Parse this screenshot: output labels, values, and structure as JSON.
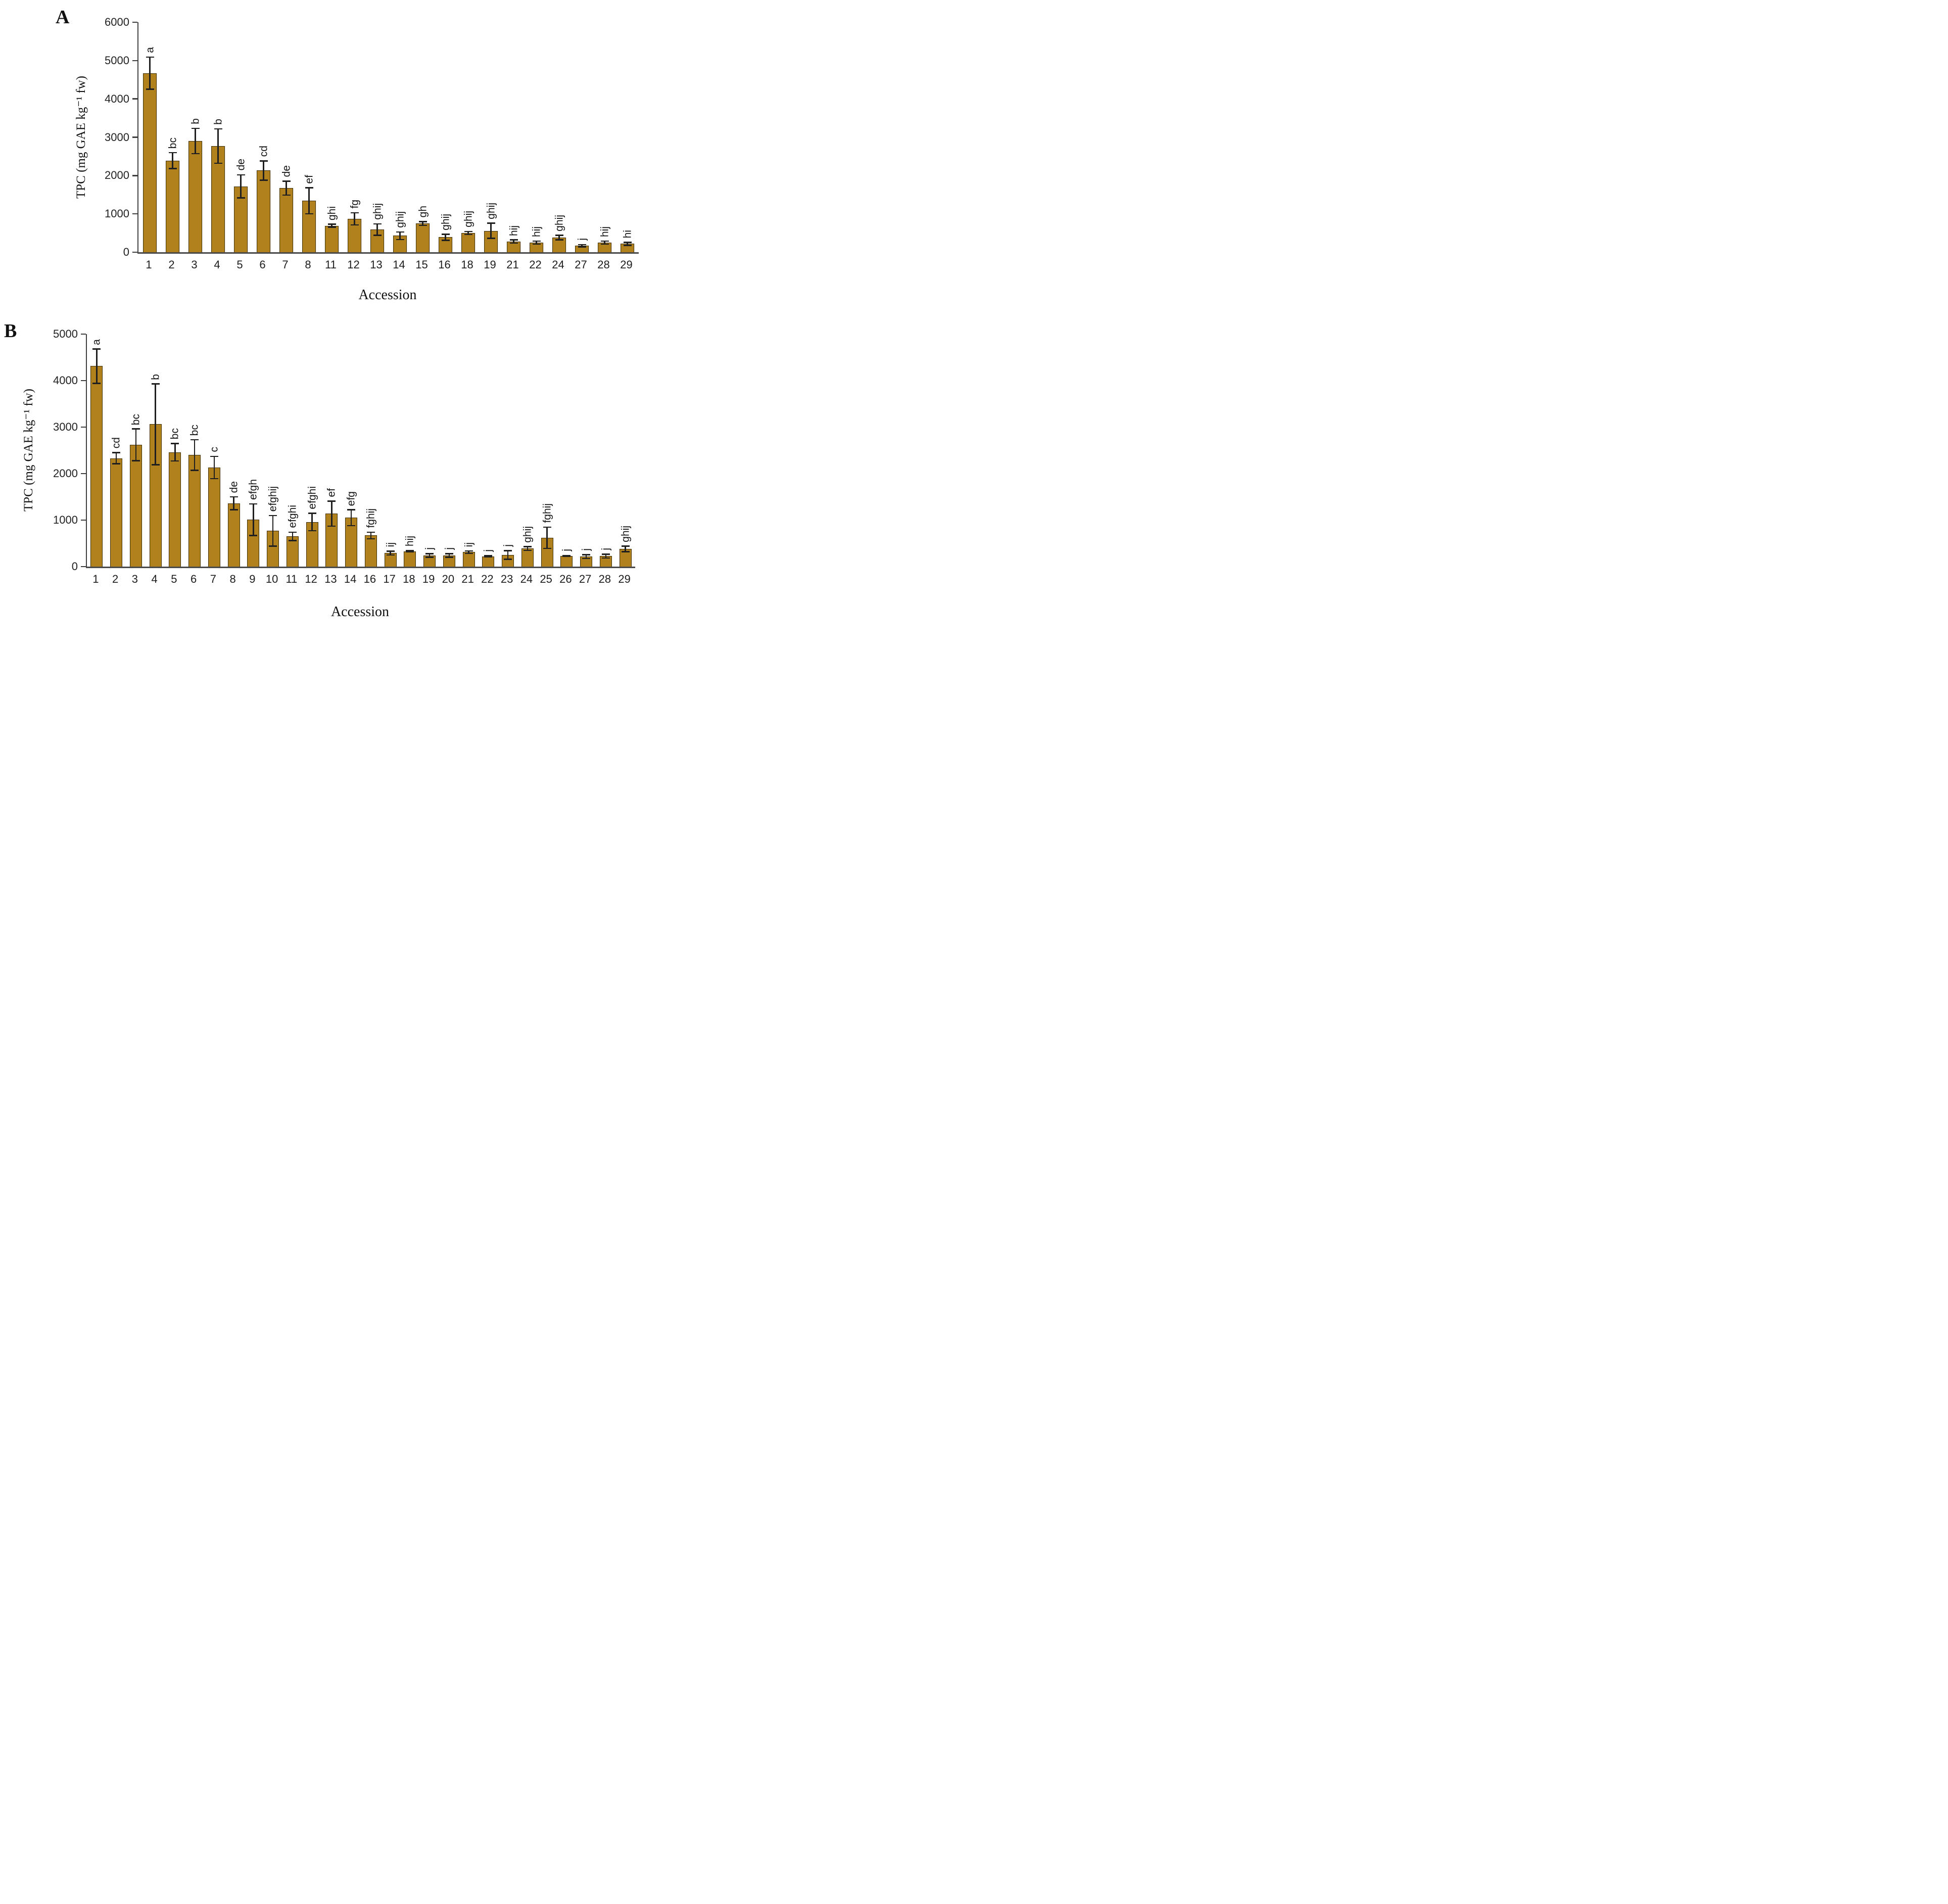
{
  "figure": {
    "bar_fill_color": "#b0811c",
    "bar_border_color": "#3e2d07",
    "error_bar_color": "#1f1f1f",
    "axis_color": "#3f3f3f"
  },
  "chart_data": [
    {
      "type": "bar",
      "panel": "A",
      "xlabel": "Accession",
      "ylabel": "TPC (mg GAE kg⁻¹ fw)",
      "ylim": [
        0,
        6000
      ],
      "yticks": [
        0,
        1000,
        2000,
        3000,
        4000,
        5000,
        6000
      ],
      "grid": false,
      "categories": [
        "1",
        "2",
        "3",
        "4",
        "5",
        "6",
        "7",
        "8",
        "11",
        "12",
        "13",
        "14",
        "15",
        "16",
        "18",
        "19",
        "21",
        "22",
        "24",
        "27",
        "28",
        "29"
      ],
      "values": [
        4670,
        2390,
        2900,
        2770,
        1720,
        2130,
        1670,
        1340,
        690,
        870,
        590,
        430,
        750,
        390,
        500,
        560,
        280,
        250,
        380,
        170,
        250,
        220
      ],
      "errors": [
        420,
        210,
        330,
        450,
        300,
        250,
        180,
        340,
        40,
        160,
        150,
        100,
        50,
        80,
        40,
        200,
        40,
        40,
        60,
        30,
        40,
        40
      ],
      "sig_letters": [
        "a",
        "bc",
        "b",
        "b",
        "de",
        "cd",
        "de",
        "ef",
        "ghi",
        "fg",
        "ghij",
        "ghij",
        "gh",
        "ghij",
        "ghij",
        "ghij",
        "hij",
        "hij",
        "ghij",
        "j",
        "hij",
        "hi"
      ]
    },
    {
      "type": "bar",
      "panel": "B",
      "xlabel": "Accession",
      "ylabel": "TPC (mg GAE kg⁻¹ fw)",
      "ylim": [
        0,
        5000
      ],
      "yticks": [
        0,
        1000,
        2000,
        3000,
        4000,
        5000
      ],
      "grid": false,
      "categories": [
        "1",
        "2",
        "3",
        "4",
        "5",
        "6",
        "7",
        "8",
        "9",
        "10",
        "11",
        "12",
        "13",
        "14",
        "16",
        "17",
        "18",
        "19",
        "20",
        "21",
        "22",
        "23",
        "24",
        "25",
        "26",
        "27",
        "28",
        "29"
      ],
      "values": [
        4310,
        2330,
        2620,
        3060,
        2460,
        2400,
        2130,
        1360,
        1010,
        770,
        650,
        960,
        1140,
        1050,
        670,
        290,
        330,
        240,
        240,
        310,
        220,
        250,
        390,
        620,
        230,
        215,
        225,
        380
      ],
      "errors": [
        370,
        120,
        340,
        870,
        190,
        330,
        240,
        140,
        340,
        330,
        90,
        190,
        270,
        170,
        70,
        40,
        15,
        40,
        40,
        25,
        15,
        90,
        40,
        230,
        10,
        40,
        40,
        60
      ],
      "sig_letters": [
        "a",
        "cd",
        "bc",
        "b",
        "bc",
        "bc",
        "c",
        "de",
        "efgh",
        "efghij",
        "efghi",
        "efghi",
        "ef",
        "efg",
        "fghij",
        "ij",
        "hij",
        "j",
        "j",
        "ij",
        "j",
        "j",
        "ghij",
        "fghij",
        "j",
        "j",
        "j",
        "ghij"
      ]
    }
  ]
}
